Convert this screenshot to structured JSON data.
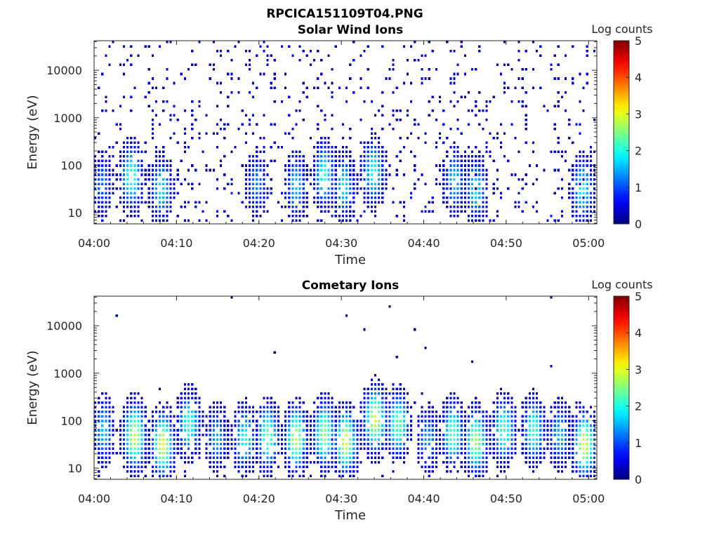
{
  "figure_title": "RPCICA151109T04.PNG",
  "chart_data": [
    {
      "type": "heatmap",
      "title": "Solar Wind Ions",
      "xlabel": "Time",
      "ylabel": "Energy (eV)",
      "x_ticks": [
        "04:00",
        "04:10",
        "04:20",
        "04:30",
        "04:40",
        "04:50",
        "05:00"
      ],
      "y_ticks": [
        "10",
        "100",
        "1000",
        "10000"
      ],
      "y_scale": "log",
      "ylim_eV": [
        5.8,
        42000
      ],
      "xlim_minutes": [
        0,
        61
      ],
      "colorbar": {
        "label": "Log counts",
        "ticks": [
          "0",
          "1",
          "2",
          "3",
          "4",
          "5"
        ],
        "range": [
          0,
          5
        ],
        "colormap": "jet"
      },
      "pattern": "sparse_background",
      "approx_bursts": [
        {
          "t_min": 1.0,
          "e_peak_eV": 40,
          "log_counts_max": 1.2
        },
        {
          "t_min": 4.6,
          "e_peak_eV": 55,
          "log_counts_max": 2.2
        },
        {
          "t_min": 8.2,
          "e_peak_eV": 30,
          "log_counts_max": 1.8
        },
        {
          "t_min": 19.8,
          "e_peak_eV": 40,
          "log_counts_max": 1.3
        },
        {
          "t_min": 24.6,
          "e_peak_eV": 35,
          "log_counts_max": 1.6
        },
        {
          "t_min": 28.0,
          "e_peak_eV": 60,
          "log_counts_max": 2.0
        },
        {
          "t_min": 30.4,
          "e_peak_eV": 35,
          "log_counts_max": 1.8
        },
        {
          "t_min": 34.0,
          "e_peak_eV": 70,
          "log_counts_max": 2.0
        },
        {
          "t_min": 43.8,
          "e_peak_eV": 45,
          "log_counts_max": 1.6
        },
        {
          "t_min": 46.4,
          "e_peak_eV": 30,
          "log_counts_max": 1.8
        },
        {
          "t_min": 59.4,
          "e_peak_eV": 30,
          "log_counts_max": 1.9
        }
      ]
    },
    {
      "type": "heatmap",
      "title": "Cometary Ions",
      "xlabel": "Time",
      "ylabel": "Energy (eV)",
      "x_ticks": [
        "04:00",
        "04:10",
        "04:20",
        "04:30",
        "04:40",
        "04:50",
        "05:00"
      ],
      "y_ticks": [
        "10",
        "100",
        "1000",
        "10000"
      ],
      "y_scale": "log",
      "ylim_eV": [
        5.8,
        42000
      ],
      "xlim_minutes": [
        0,
        61
      ],
      "colorbar": {
        "label": "Log counts",
        "ticks": [
          "0",
          "1",
          "2",
          "3",
          "4",
          "5"
        ],
        "range": [
          0,
          5
        ],
        "colormap": "jet"
      },
      "pattern": "periodic_bursts",
      "approx_bursts": [
        {
          "t_min": 1.2,
          "e_peak_eV": 60,
          "log_counts_max": 1.6
        },
        {
          "t_min": 5.0,
          "e_peak_eV": 45,
          "log_counts_max": 2.9
        },
        {
          "t_min": 8.4,
          "e_peak_eV": 30,
          "log_counts_max": 3.0
        },
        {
          "t_min": 11.6,
          "e_peak_eV": 80,
          "log_counts_max": 2.2
        },
        {
          "t_min": 15.0,
          "e_peak_eV": 40,
          "log_counts_max": 1.5
        },
        {
          "t_min": 18.4,
          "e_peak_eV": 40,
          "log_counts_max": 2.0
        },
        {
          "t_min": 21.2,
          "e_peak_eV": 45,
          "log_counts_max": 2.4
        },
        {
          "t_min": 24.6,
          "e_peak_eV": 40,
          "log_counts_max": 2.8
        },
        {
          "t_min": 28.0,
          "e_peak_eV": 50,
          "log_counts_max": 2.6
        },
        {
          "t_min": 30.6,
          "e_peak_eV": 35,
          "log_counts_max": 3.0
        },
        {
          "t_min": 34.2,
          "e_peak_eV": 100,
          "log_counts_max": 3.0
        },
        {
          "t_min": 37.0,
          "e_peak_eV": 80,
          "log_counts_max": 2.4
        },
        {
          "t_min": 40.6,
          "e_peak_eV": 40,
          "log_counts_max": 1.4
        },
        {
          "t_min": 43.6,
          "e_peak_eV": 50,
          "log_counts_max": 2.3
        },
        {
          "t_min": 46.4,
          "e_peak_eV": 35,
          "log_counts_max": 2.7
        },
        {
          "t_min": 49.8,
          "e_peak_eV": 60,
          "log_counts_max": 2.3
        },
        {
          "t_min": 53.4,
          "e_peak_eV": 60,
          "log_counts_max": 2.2
        },
        {
          "t_min": 56.6,
          "e_peak_eV": 50,
          "log_counts_max": 1.6
        },
        {
          "t_min": 59.6,
          "e_peak_eV": 30,
          "log_counts_max": 3.0
        }
      ]
    }
  ]
}
